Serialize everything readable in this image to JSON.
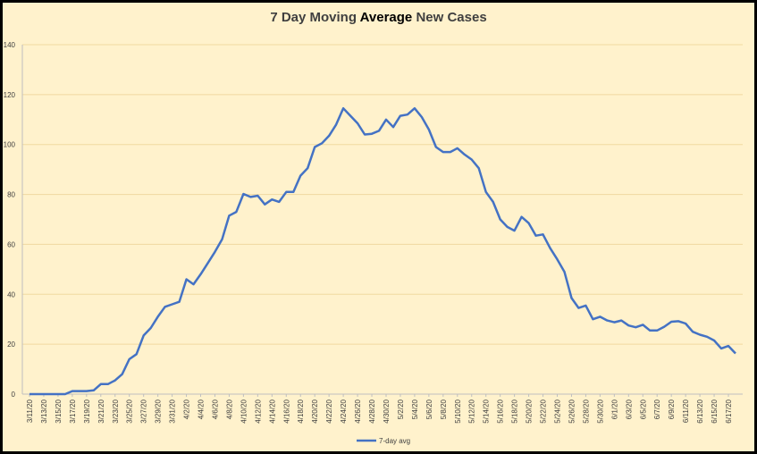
{
  "chart_data": {
    "type": "line",
    "title_parts": [
      "7 Day Moving ",
      "Average",
      " New Cases"
    ],
    "xlabel": "",
    "ylabel": "",
    "ylim": [
      0,
      140
    ],
    "yticks": [
      "0",
      "20",
      "40",
      "60",
      "80",
      "100",
      "120",
      "140"
    ],
    "x_start": "2020-03-11",
    "x_tick_labels": [
      "3/11/20",
      "3/13/20",
      "3/15/20",
      "3/17/20",
      "3/19/20",
      "3/21/20",
      "3/23/20",
      "3/25/20",
      "3/27/20",
      "3/29/20",
      "3/31/20",
      "4/2/20",
      "4/4/20",
      "4/6/20",
      "4/8/20",
      "4/10/20",
      "4/12/20",
      "4/14/20",
      "4/16/20",
      "4/18/20",
      "4/20/20",
      "4/22/20",
      "4/24/20",
      "4/26/20",
      "4/28/20",
      "4/30/20",
      "5/2/20",
      "5/4/20",
      "5/6/20",
      "5/8/20",
      "5/10/20",
      "5/12/20",
      "5/14/20",
      "5/16/20",
      "5/18/20",
      "5/20/20",
      "5/22/20",
      "5/24/20",
      "5/26/20",
      "5/28/20",
      "5/30/20",
      "6/1/20",
      "6/3/20",
      "6/5/20",
      "6/7/20",
      "6/9/20",
      "6/11/20",
      "6/13/20",
      "6/15/20",
      "6/17/20"
    ],
    "gridlines": true,
    "legend_position": "bottom",
    "series": [
      {
        "name": "7-day avg",
        "color": "#4472c4",
        "values": [
          0,
          0,
          0,
          0,
          0,
          0,
          1.2,
          1.2,
          1.2,
          1.5,
          4,
          4,
          5.5,
          8,
          14,
          16,
          23.5,
          26.5,
          31,
          35,
          36,
          37,
          46,
          44,
          48,
          52.5,
          57,
          62,
          71.5,
          73,
          80.2,
          79,
          79.5,
          76,
          78,
          77,
          81,
          81,
          87.5,
          90.5,
          99,
          100.5,
          103.5,
          108,
          114.5,
          111.5,
          108.5,
          104,
          104.3,
          105.5,
          110,
          107,
          111.5,
          112,
          114.5,
          111,
          106,
          99,
          97,
          97,
          98.5,
          96,
          94,
          90.5,
          81,
          77,
          70,
          67,
          65.5,
          71,
          68.5,
          63.5,
          64,
          58.5,
          54,
          49,
          38.5,
          34.5,
          35.5,
          30,
          31,
          29.5,
          28.8,
          29.5,
          27.5,
          26.8,
          27.8,
          25.5,
          25.5,
          27,
          29,
          29.2,
          28.3,
          25,
          23.8,
          23,
          21.5,
          18.3,
          19.3,
          16.3
        ]
      }
    ]
  }
}
